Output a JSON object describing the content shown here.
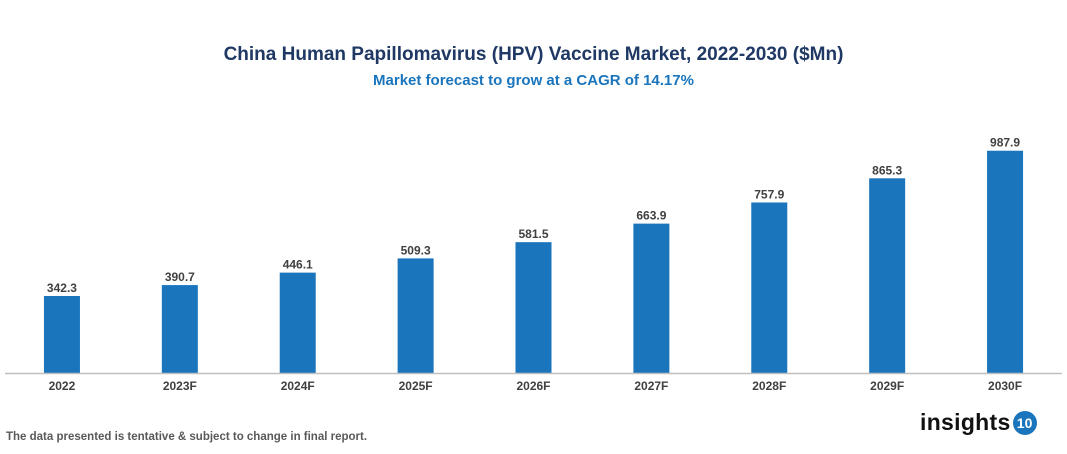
{
  "chart_data": {
    "type": "bar",
    "title": "China Human Papillomavirus (HPV) Vaccine Market, 2022-2030 ($Mn)",
    "subtitle": "Market forecast to grow at a CAGR of 14.17%",
    "categories": [
      "2022",
      "2023F",
      "2024F",
      "2025F",
      "2026F",
      "2027F",
      "2028F",
      "2029F",
      "2030F"
    ],
    "values": [
      342.3,
      390.7,
      446.1,
      509.3,
      581.5,
      663.9,
      757.9,
      865.3,
      987.9
    ],
    "value_labels": [
      "342.3",
      "390.7",
      "446.1",
      "509.3",
      "581.5",
      "663.9",
      "757.9",
      "865.3",
      "987.9"
    ],
    "xlabel": "",
    "ylabel": "",
    "ylim": [
      0,
      1000
    ],
    "grid": false,
    "legend": "none",
    "bar_color": "#1a75bc"
  },
  "footer": {
    "note": "The data presented is tentative & subject to change in final report.",
    "logo_text": "insights",
    "logo_number": "10"
  }
}
